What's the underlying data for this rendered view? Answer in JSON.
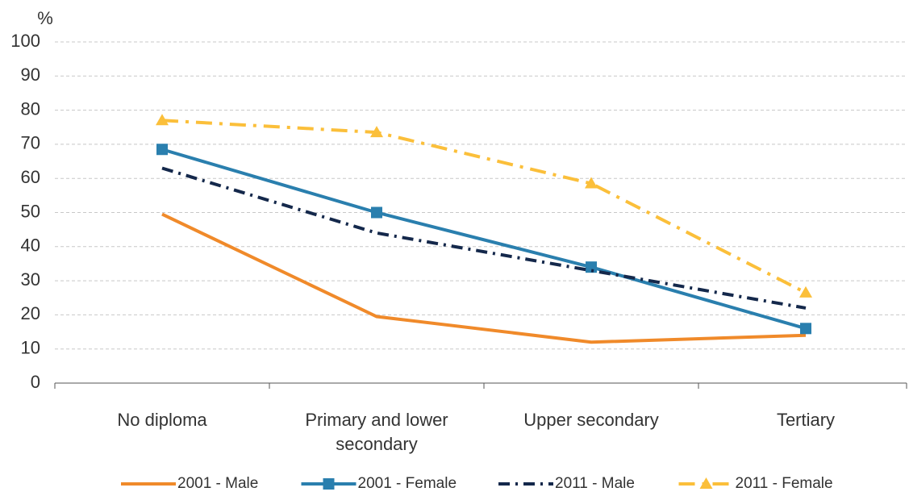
{
  "chart_data": {
    "type": "line",
    "y_label": "%",
    "categories": [
      "No diploma",
      "Primary and lower secondary",
      "Upper secondary",
      "Tertiary"
    ],
    "series": [
      {
        "name": "2001 - Male",
        "color": "#f08a2a",
        "values": [
          49.5,
          19.5,
          12,
          14
        ]
      },
      {
        "name": "2001 - Female",
        "color": "#2a7fae",
        "marker": "square",
        "values": [
          68.5,
          50,
          34,
          16
        ]
      },
      {
        "name": "2011 - Male",
        "color": "#14284b",
        "dash": "dash-dot",
        "values": [
          63,
          44,
          33,
          22
        ]
      },
      {
        "name": "2011 - Female",
        "color": "#fbbf3a",
        "dash": "long-dash-dot",
        "marker": "triangle",
        "values": [
          77,
          73.5,
          58.5,
          26.5
        ]
      }
    ],
    "ylim": [
      0,
      100
    ],
    "yticks": [
      0,
      10,
      20,
      30,
      40,
      50,
      60,
      70,
      80,
      90,
      100
    ],
    "grid": true,
    "legend": "bottom"
  }
}
